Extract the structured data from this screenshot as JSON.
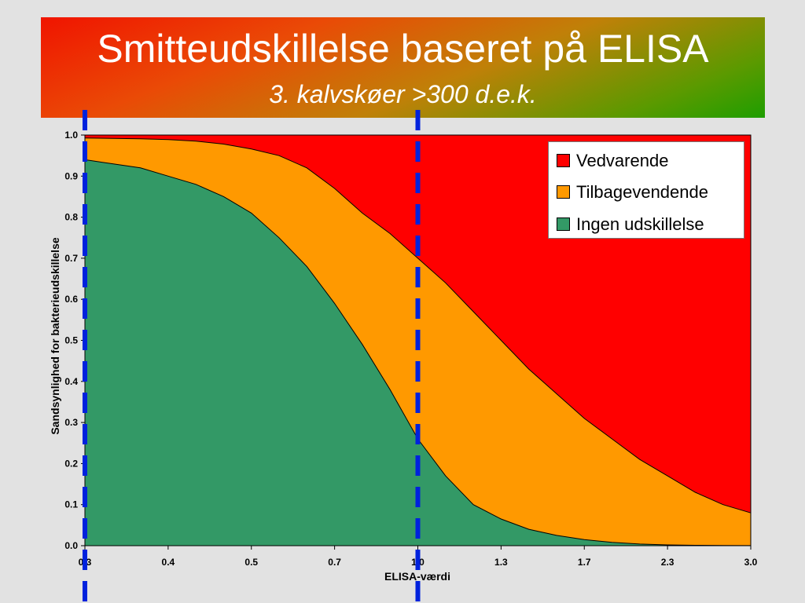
{
  "title": "Smitteudskillelse baseret på ELISA",
  "subtitle": "3. kalvskøer >300 d.e.k.",
  "colors": {
    "vedvarende": "#ff0000",
    "tilbagevendende": "#ff9900",
    "ingen": "#339966",
    "marker_lines": "#0022dd"
  },
  "chart_data": {
    "type": "area",
    "stacked": true,
    "xlabel": "ELISA-værdi",
    "ylabel": "Sandsynlighed for bakterieudskillelse",
    "x_ticks": [
      "0.3",
      "0.4",
      "0.5",
      "0.7",
      "1.0",
      "1.3",
      "1.7",
      "2.3",
      "3.0"
    ],
    "y_ticks": [
      "0.0",
      "0.1",
      "0.2",
      "0.3",
      "0.4",
      "0.5",
      "0.6",
      "0.7",
      "0.8",
      "0.9",
      "1.0"
    ],
    "ylim": [
      0,
      1
    ],
    "legend_position": "top-right",
    "series": [
      {
        "name": "Ingen udskillelse",
        "cumulative_upper": [
          0.94,
          0.93,
          0.92,
          0.9,
          0.88,
          0.85,
          0.81,
          0.75,
          0.68,
          0.59,
          0.49,
          0.38,
          0.26,
          0.17,
          0.1,
          0.065,
          0.04,
          0.025,
          0.015,
          0.008,
          0.004,
          0.002,
          0.001,
          0.0005,
          0.0002
        ]
      },
      {
        "name": "Tilbagevendende",
        "cumulative_upper": [
          0.993,
          0.992,
          0.991,
          0.989,
          0.985,
          0.978,
          0.966,
          0.95,
          0.92,
          0.87,
          0.81,
          0.76,
          0.7,
          0.64,
          0.57,
          0.5,
          0.43,
          0.37,
          0.31,
          0.26,
          0.21,
          0.17,
          0.13,
          0.1,
          0.08
        ]
      },
      {
        "name": "Vedvarende",
        "cumulative_upper": [
          1,
          1,
          1,
          1,
          1,
          1,
          1,
          1,
          1,
          1,
          1,
          1,
          1,
          1,
          1,
          1,
          1,
          1,
          1,
          1,
          1,
          1,
          1,
          1,
          1
        ]
      }
    ],
    "marker_lines_at": [
      "0.3",
      "1.0"
    ]
  }
}
